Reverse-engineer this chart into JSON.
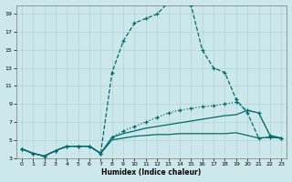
{
  "xlabel": "Humidex (Indice chaleur)",
  "bg_color": "#cde8ea",
  "grid_color": "#aed4d6",
  "line_color": "#006b6b",
  "xlim": [
    -0.5,
    23.5
  ],
  "ylim": [
    3,
    20
  ],
  "xticks": [
    0,
    1,
    2,
    3,
    4,
    5,
    6,
    7,
    8,
    9,
    10,
    11,
    12,
    13,
    14,
    15,
    16,
    17,
    18,
    19,
    20,
    21,
    22,
    23
  ],
  "yticks": [
    3,
    5,
    7,
    9,
    11,
    13,
    15,
    17,
    19
  ],
  "curve_peak_x": [
    0,
    1,
    2,
    3,
    4,
    5,
    6,
    7,
    8,
    9,
    10,
    11,
    12,
    13,
    14,
    14.5,
    15,
    16,
    17,
    18,
    19,
    20,
    21,
    22,
    23
  ],
  "curve_peak_y": [
    4.0,
    3.5,
    3.2,
    3.8,
    4.3,
    4.3,
    4.3,
    3.5,
    12.5,
    16.0,
    18.0,
    18.5,
    19.0,
    20.3,
    20.5,
    20.5,
    20.0,
    15.0,
    13.0,
    12.5,
    9.5,
    8.0,
    5.2,
    5.3,
    5.2
  ],
  "curve_diag_x": [
    0,
    1,
    2,
    3,
    4,
    5,
    6,
    7,
    8,
    9,
    10,
    11,
    12,
    13,
    14,
    15,
    16,
    17,
    18,
    19,
    20,
    21,
    22,
    23
  ],
  "curve_diag_y": [
    4.0,
    3.5,
    3.2,
    3.8,
    4.3,
    4.3,
    4.3,
    3.5,
    5.3,
    6.0,
    6.5,
    7.0,
    7.5,
    8.0,
    8.3,
    8.5,
    8.7,
    8.8,
    9.0,
    9.2,
    8.3,
    8.0,
    5.5,
    5.2
  ],
  "curve_mid_x": [
    0,
    1,
    2,
    3,
    4,
    5,
    6,
    7,
    8,
    9,
    10,
    11,
    12,
    13,
    14,
    15,
    16,
    17,
    18,
    19,
    20,
    21,
    22,
    23
  ],
  "curve_mid_y": [
    4.0,
    3.5,
    3.2,
    3.8,
    4.3,
    4.3,
    4.3,
    3.5,
    5.3,
    5.7,
    6.0,
    6.3,
    6.5,
    6.7,
    6.9,
    7.1,
    7.3,
    7.5,
    7.7,
    7.8,
    8.3,
    8.0,
    5.5,
    5.2
  ],
  "curve_flat_x": [
    0,
    1,
    2,
    3,
    4,
    5,
    6,
    7,
    8,
    9,
    10,
    11,
    12,
    13,
    14,
    15,
    16,
    17,
    18,
    19,
    20,
    21,
    22,
    23
  ],
  "curve_flat_y": [
    4.0,
    3.5,
    3.2,
    3.8,
    4.3,
    4.3,
    4.3,
    3.5,
    5.0,
    5.2,
    5.4,
    5.5,
    5.6,
    5.6,
    5.7,
    5.7,
    5.7,
    5.7,
    5.7,
    5.8,
    5.5,
    5.2,
    5.3,
    5.2
  ]
}
